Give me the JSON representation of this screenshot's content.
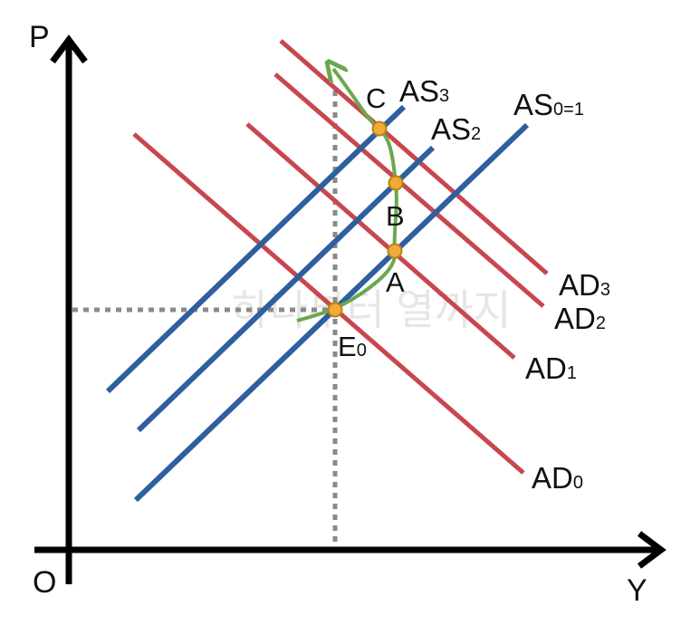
{
  "axes": {
    "y_label": "P",
    "x_label": "Y",
    "origin_label": "O"
  },
  "watermark": "하나부터 열까지",
  "colors": {
    "axis": "#000000",
    "as_line": "#2e5f9e",
    "ad_line": "#c8474f",
    "path": "#6aa84f",
    "point_fill": "#f2a93b",
    "point_stroke": "#b8860b",
    "guide": "#8a8a8a"
  },
  "curves": {
    "as": [
      {
        "main": "AS",
        "sub": "0=1"
      },
      {
        "main": "AS",
        "sub": "2"
      },
      {
        "main": "AS",
        "sub": "3"
      }
    ],
    "ad": [
      {
        "main": "AD",
        "sub": "0"
      },
      {
        "main": "AD",
        "sub": "1"
      },
      {
        "main": "AD",
        "sub": "2"
      },
      {
        "main": "AD",
        "sub": "3"
      }
    ]
  },
  "points": [
    {
      "main": "E",
      "sub": "0"
    },
    {
      "main": "A",
      "sub": ""
    },
    {
      "main": "B",
      "sub": ""
    },
    {
      "main": "C",
      "sub": ""
    }
  ]
}
